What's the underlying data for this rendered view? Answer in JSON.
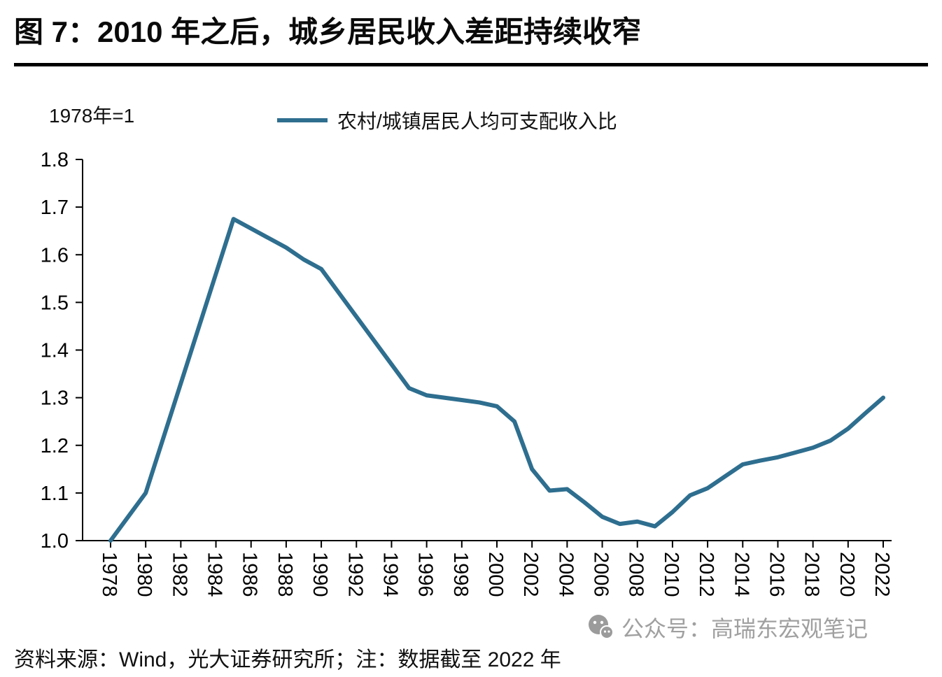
{
  "page": {
    "title": "图 7：2010 年之后，城乡居民收入差距持续收窄",
    "source_note": "资料来源：Wind，光大证券研究所；注：数据截至 2022 年",
    "watermark": "公众号：高瑞东宏观笔记"
  },
  "chart_data": {
    "type": "line",
    "title": "图 7：2010 年之后，城乡居民收入差距持续收窄",
    "unit_label": "1978年=1",
    "legend_position": "top",
    "grid": false,
    "ylim": [
      1.0,
      1.8
    ],
    "ytick_step": 0.1,
    "xtick_step": 2,
    "x": [
      1978,
      1979,
      1980,
      1981,
      1982,
      1983,
      1984,
      1985,
      1986,
      1987,
      1988,
      1989,
      1990,
      1991,
      1992,
      1993,
      1994,
      1995,
      1996,
      1997,
      1998,
      1999,
      2000,
      2001,
      2002,
      2003,
      2004,
      2005,
      2006,
      2007,
      2008,
      2009,
      2010,
      2011,
      2012,
      2013,
      2014,
      2015,
      2016,
      2017,
      2018,
      2019,
      2020,
      2021,
      2022
    ],
    "series": [
      {
        "name": "农村/城镇居民人均可支配收入比",
        "color": "#2E6E8F",
        "values": [
          1.0,
          1.05,
          1.1,
          1.215,
          1.33,
          1.445,
          1.56,
          1.675,
          1.655,
          1.635,
          1.615,
          1.59,
          1.57,
          1.52,
          1.47,
          1.42,
          1.37,
          1.32,
          1.305,
          1.3,
          1.295,
          1.29,
          1.282,
          1.25,
          1.15,
          1.105,
          1.108,
          1.08,
          1.05,
          1.035,
          1.04,
          1.03,
          1.06,
          1.095,
          1.11,
          1.135,
          1.16,
          1.168,
          1.175,
          1.185,
          1.195,
          1.21,
          1.235,
          1.268,
          1.3
        ]
      }
    ]
  }
}
